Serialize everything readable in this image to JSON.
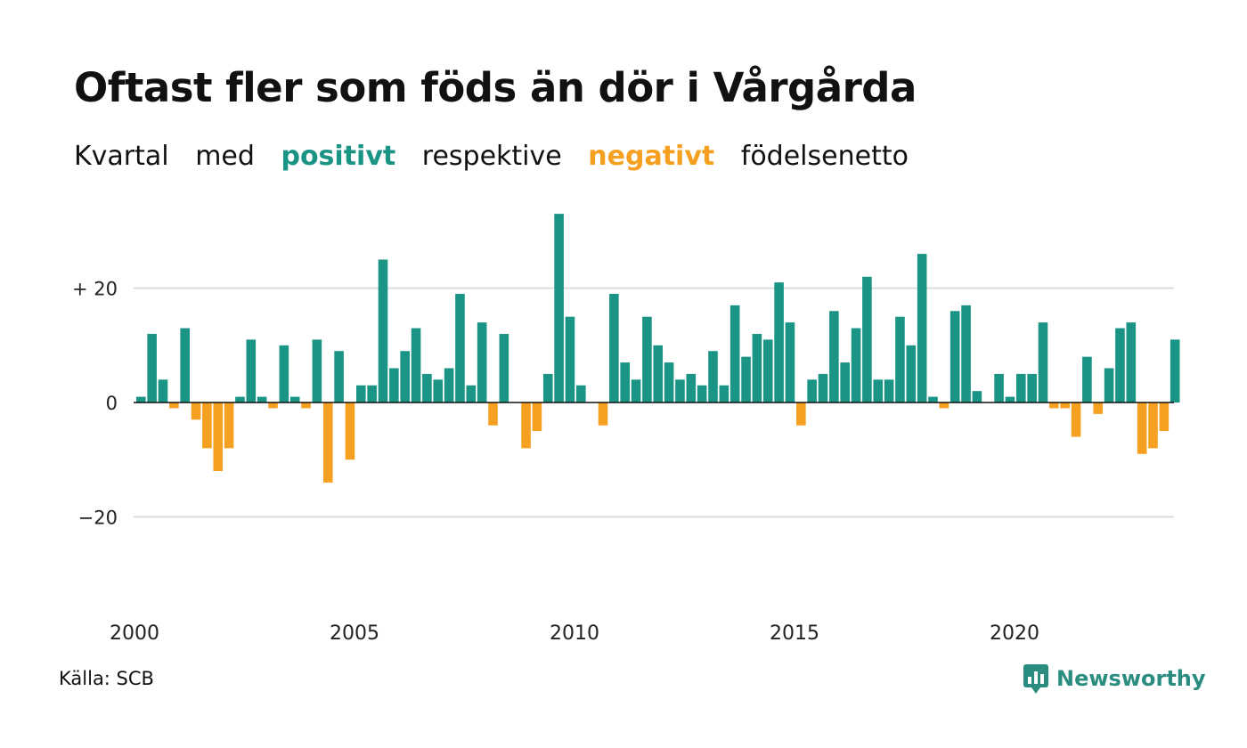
{
  "title": "Oftast fler som föds än dör i Vårgårda",
  "subtitle": {
    "w1": "Kvartal",
    "w2": "med",
    "positive": "positivt",
    "w3": "respektive",
    "negative": "negativt",
    "w4": "födelsenetto"
  },
  "source": "Källa: SCB",
  "brand": "Newsworthy",
  "colors": {
    "positive": "#1a9485",
    "negative": "#f5a020",
    "grid": "#dddddd",
    "axis": "#111111"
  },
  "chart_data": {
    "type": "bar",
    "title": "Oftast fler som föds än dör i Vårgårda",
    "xlabel": "",
    "ylabel": "",
    "ylim": [
      -33,
      34
    ],
    "grid": true,
    "y_ticks": [
      {
        "value": 20,
        "label": "+ 20"
      },
      {
        "value": 0,
        "label": "0"
      },
      {
        "value": -20,
        "label": "−20"
      }
    ],
    "x_ticks": [
      {
        "value": 2000,
        "label": "2000"
      },
      {
        "value": 2005,
        "label": "2005"
      },
      {
        "value": 2010,
        "label": "2010"
      },
      {
        "value": 2015,
        "label": "2015"
      },
      {
        "value": 2020,
        "label": "2020"
      }
    ],
    "start": "2000 Q1",
    "categories": [
      "2000 Q1",
      "2000 Q2",
      "2000 Q3",
      "2000 Q4",
      "2001 Q1",
      "2001 Q2",
      "2001 Q3",
      "2001 Q4",
      "2002 Q1",
      "2002 Q2",
      "2002 Q3",
      "2002 Q4",
      "2003 Q1",
      "2003 Q2",
      "2003 Q3",
      "2003 Q4",
      "2004 Q1",
      "2004 Q2",
      "2004 Q3",
      "2004 Q4",
      "2005 Q1",
      "2005 Q2",
      "2005 Q3",
      "2005 Q4",
      "2006 Q1",
      "2006 Q2",
      "2006 Q3",
      "2006 Q4",
      "2007 Q1",
      "2007 Q2",
      "2007 Q3",
      "2007 Q4",
      "2008 Q1",
      "2008 Q2",
      "2008 Q3",
      "2008 Q4",
      "2009 Q1",
      "2009 Q2",
      "2009 Q3",
      "2009 Q4",
      "2010 Q1",
      "2010 Q2",
      "2010 Q3",
      "2010 Q4",
      "2011 Q1",
      "2011 Q2",
      "2011 Q3",
      "2011 Q4",
      "2012 Q1",
      "2012 Q2",
      "2012 Q3",
      "2012 Q4",
      "2013 Q1",
      "2013 Q2",
      "2013 Q3",
      "2013 Q4",
      "2014 Q1",
      "2014 Q2",
      "2014 Q3",
      "2014 Q4",
      "2015 Q1",
      "2015 Q2",
      "2015 Q3",
      "2015 Q4",
      "2016 Q1",
      "2016 Q2",
      "2016 Q3",
      "2016 Q4",
      "2017 Q1",
      "2017 Q2",
      "2017 Q3",
      "2017 Q4",
      "2018 Q1",
      "2018 Q2",
      "2018 Q3",
      "2018 Q4",
      "2019 Q1",
      "2019 Q2",
      "2019 Q3",
      "2019 Q4",
      "2020 Q1",
      "2020 Q2",
      "2020 Q3",
      "2020 Q4",
      "2021 Q1",
      "2021 Q2",
      "2021 Q3",
      "2021 Q4",
      "2022 Q1",
      "2022 Q2",
      "2022 Q3",
      "2022 Q4",
      "2023 Q1",
      "2023 Q2",
      "2023 Q3",
      "2023 Q4"
    ],
    "values": [
      1,
      12,
      4,
      -1,
      13,
      -3,
      -8,
      -12,
      -8,
      1,
      11,
      1,
      -1,
      10,
      1,
      -1,
      11,
      -14,
      9,
      -10,
      3,
      3,
      25,
      6,
      9,
      13,
      5,
      4,
      6,
      19,
      3,
      14,
      -4,
      12,
      0,
      -8,
      -5,
      5,
      33,
      15,
      3,
      0,
      -4,
      19,
      7,
      4,
      15,
      10,
      7,
      4,
      5,
      3,
      9,
      3,
      17,
      8,
      12,
      11,
      21,
      14,
      -4,
      4,
      5,
      16,
      7,
      13,
      22,
      4,
      4,
      15,
      10,
      26,
      1,
      -1,
      16,
      17,
      2,
      0,
      5,
      1,
      5,
      5,
      14,
      -1,
      -1,
      -6,
      8,
      -2,
      6,
      13,
      14,
      -9,
      -8,
      -5,
      11,
      0
    ]
  }
}
